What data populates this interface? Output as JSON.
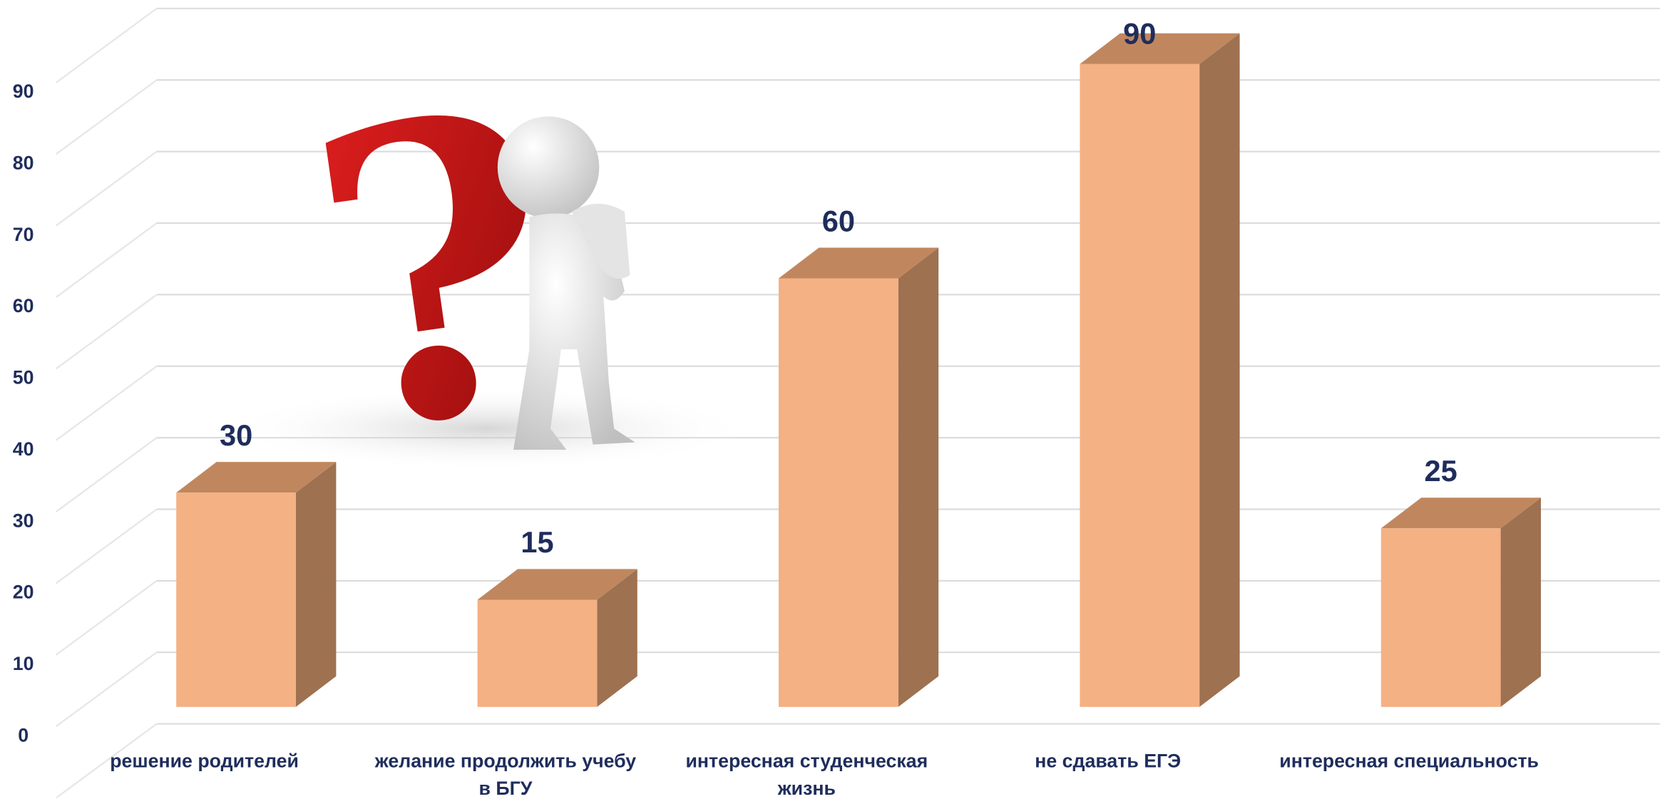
{
  "chart_data": {
    "type": "bar3d",
    "categories": [
      "решение родителей",
      "желание продолжить учебу в БГУ",
      "интересная студенческая жизнь",
      "не сдавать ЕГЭ",
      "интересная специальность"
    ],
    "values": [
      30,
      15,
      60,
      90,
      25
    ],
    "color": "#f4b183",
    "ylim": [
      0,
      100
    ],
    "yticks": [
      0,
      10,
      20,
      30,
      40,
      50,
      60,
      70,
      80,
      90
    ],
    "grid": true
  }
}
